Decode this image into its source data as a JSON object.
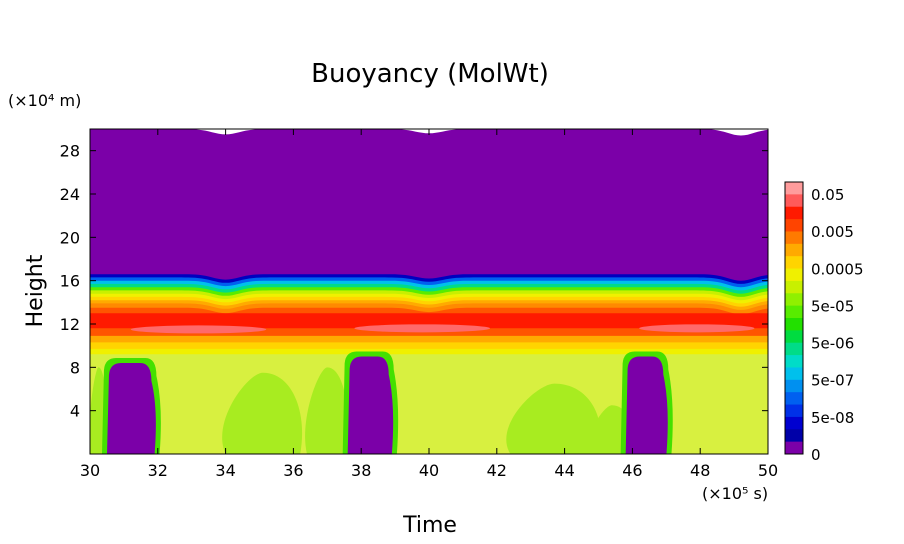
{
  "chart_data": {
    "type": "heatmap",
    "title": "Buoyancy (MolWt)",
    "xlabel": "Time",
    "ylabel": "Height",
    "x_unit_label": "(×10⁵ s)",
    "y_unit_label": "(×10⁴ m)",
    "xlim": [
      30,
      50
    ],
    "ylim": [
      0,
      30
    ],
    "x_ticks": [
      "30",
      "32",
      "34",
      "36",
      "38",
      "40",
      "42",
      "44",
      "46",
      "48",
      "50"
    ],
    "y_ticks": [
      "4",
      "8",
      "12",
      "16",
      "20",
      "24",
      "28"
    ],
    "colorbar": {
      "labels": [
        "0.05",
        "0.005",
        "0.0005",
        "5e-05",
        "5e-06",
        "5e-07",
        "5e-08",
        "0"
      ],
      "colors": [
        "#ff9c9c",
        "#ff5a5a",
        "#ff1a00",
        "#ff4400",
        "#ff7a00",
        "#ffaa00",
        "#ffd400",
        "#f0f000",
        "#c8f000",
        "#90f000",
        "#58ec00",
        "#22e000",
        "#00dc40",
        "#00dc88",
        "#00dcc8",
        "#00c0ec",
        "#0090f0",
        "#0060f0",
        "#0030e8",
        "#0000d0",
        "#0000a8",
        "#7b00a8"
      ]
    },
    "bands": [
      {
        "y_from": 0,
        "y_to": 9.2,
        "color": "#d8f040"
      },
      {
        "y_from": 9.2,
        "y_to": 9.7,
        "color": "#f0f000"
      },
      {
        "y_from": 9.7,
        "y_to": 10.3,
        "color": "#ffd400"
      },
      {
        "y_from": 10.3,
        "y_to": 10.9,
        "color": "#ffaa00"
      },
      {
        "y_from": 10.9,
        "y_to": 11.6,
        "color": "#ff5500"
      },
      {
        "y_from": 11.6,
        "y_to": 13.0,
        "color": "#ff1a00"
      },
      {
        "y_from": 13.0,
        "y_to": 13.5,
        "color": "#ff5500"
      },
      {
        "y_from": 13.5,
        "y_to": 13.9,
        "color": "#ff8a00"
      },
      {
        "y_from": 13.9,
        "y_to": 14.2,
        "color": "#ffaa00"
      },
      {
        "y_from": 14.2,
        "y_to": 14.5,
        "color": "#ffd400"
      },
      {
        "y_from": 14.5,
        "y_to": 14.8,
        "color": "#f0f000"
      },
      {
        "y_from": 14.8,
        "y_to": 15.1,
        "color": "#c8f000"
      },
      {
        "y_from": 15.1,
        "y_to": 15.4,
        "color": "#58ec00"
      },
      {
        "y_from": 15.4,
        "y_to": 15.7,
        "color": "#00dc88"
      },
      {
        "y_from": 15.7,
        "y_to": 16.0,
        "color": "#00c0ec"
      },
      {
        "y_from": 16.0,
        "y_to": 16.3,
        "color": "#0060f0"
      },
      {
        "y_from": 16.3,
        "y_to": 16.6,
        "color": "#0000c0"
      },
      {
        "y_from": 16.6,
        "y_to": 30,
        "color": "#7b00a8"
      }
    ],
    "dips": [
      {
        "x": 34.0,
        "depth": 0.5
      },
      {
        "x": 40.0,
        "depth": 0.4
      },
      {
        "x": 49.2,
        "depth": 0.6
      }
    ],
    "red_highlights": [
      {
        "x_from": 31.2,
        "x_to": 35.2,
        "y": 11.5
      },
      {
        "x_from": 37.8,
        "x_to": 41.8,
        "y": 11.6
      },
      {
        "x_from": 46.2,
        "x_to": 49.6,
        "y": 11.6
      }
    ],
    "green_patches": [
      {
        "x_from": 34.0,
        "x_to": 36.2,
        "y_from": 0,
        "y_to": 7.5
      },
      {
        "x_from": 36.4,
        "x_to": 37.6,
        "y_from": 0,
        "y_to": 8.0
      },
      {
        "x_from": 42.4,
        "x_to": 45.0,
        "y_from": 0,
        "y_to": 6.5
      },
      {
        "x_from": 44.8,
        "x_to": 46.0,
        "y_from": 0,
        "y_to": 4.5
      },
      {
        "x_from": 30.0,
        "x_to": 30.5,
        "y_from": 0,
        "y_to": 8.0
      }
    ],
    "plumes": [
      {
        "x_from": 30.5,
        "x_to": 31.9,
        "y_top": 8.4
      },
      {
        "x_from": 37.6,
        "x_to": 38.9,
        "y_top": 9.0
      },
      {
        "x_from": 45.8,
        "x_to": 47.0,
        "y_top": 9.0
      }
    ]
  }
}
